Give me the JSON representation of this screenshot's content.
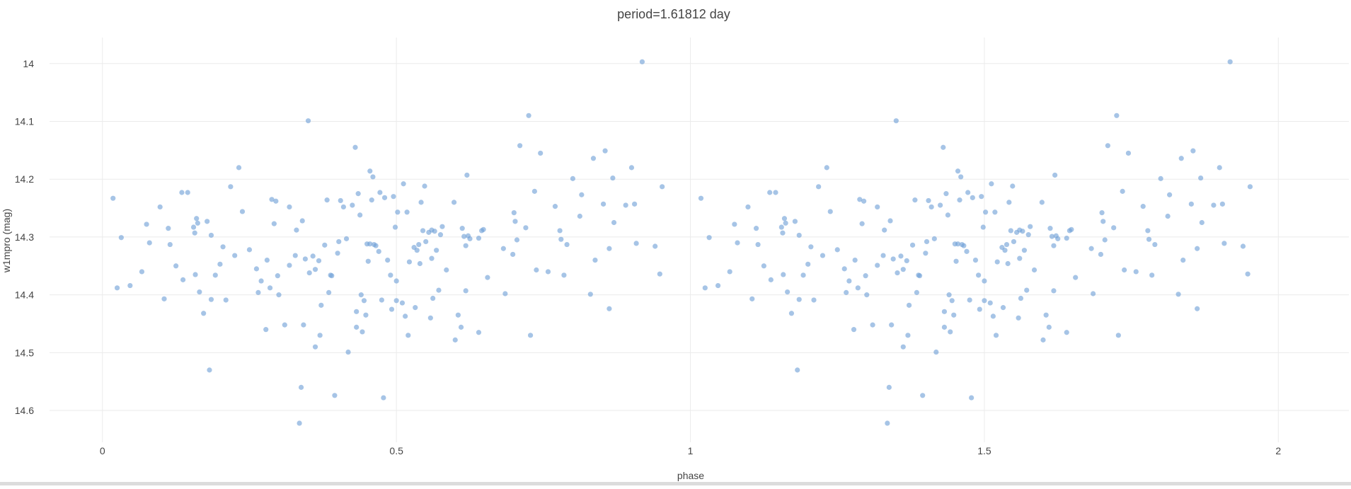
{
  "colors": {
    "marker": "#6f9fd6",
    "grid": "#ebebeb",
    "text": "#444444"
  },
  "chart_data": {
    "type": "scatter",
    "title": "period=1.61812 day",
    "xlabel": "phase",
    "ylabel": "w1mpro (mag)",
    "xlim": [
      -0.09,
      2.12
    ],
    "ylim": [
      14.655,
      13.955
    ],
    "y_reversed": true,
    "grid": true,
    "xticks": [
      0,
      0.5,
      1,
      1.5,
      2
    ],
    "xtick_labels": [
      "0",
      "0.5",
      "1",
      "1.5",
      "2"
    ],
    "yticks": [
      14.0,
      14.1,
      14.2,
      14.3,
      14.4,
      14.5,
      14.6
    ],
    "ytick_labels": [
      "14",
      "14.1",
      "14.2",
      "14.3",
      "14.4",
      "14.5",
      "14.6"
    ],
    "series": [
      {
        "phase": [
          0.018,
          0.025,
          0.032,
          0.047,
          0.067,
          0.075,
          0.08,
          0.098,
          0.105,
          0.112,
          0.115,
          0.125,
          0.135,
          0.137,
          0.145,
          0.155,
          0.157,
          0.158,
          0.16,
          0.162,
          0.165,
          0.172,
          0.178,
          0.182,
          0.185,
          0.185,
          0.192,
          0.2,
          0.205,
          0.21,
          0.218,
          0.225,
          0.232,
          0.238,
          0.25,
          0.262,
          0.265,
          0.27,
          0.278,
          0.28,
          0.285,
          0.288,
          0.292,
          0.295,
          0.298,
          0.3,
          0.31,
          0.318,
          0.318,
          0.328,
          0.33,
          0.335,
          0.338,
          0.34,
          0.342,
          0.345,
          0.35,
          0.352,
          0.358,
          0.362,
          0.362,
          0.368,
          0.37,
          0.372,
          0.378,
          0.382,
          0.385,
          0.388,
          0.39,
          0.395,
          0.4,
          0.402,
          0.405,
          0.41,
          0.415,
          0.418,
          0.425,
          0.43,
          0.432,
          0.432,
          0.435,
          0.438,
          0.44,
          0.442,
          0.445,
          0.448,
          0.45,
          0.452,
          0.455,
          0.455,
          0.458,
          0.46,
          0.462,
          0.465,
          0.47,
          0.472,
          0.475,
          0.478,
          0.48,
          0.485,
          0.49,
          0.492,
          0.495,
          0.498,
          0.5,
          0.5,
          0.502,
          0.51,
          0.512,
          0.515,
          0.518,
          0.52,
          0.522,
          0.53,
          0.532,
          0.535,
          0.538,
          0.54,
          0.542,
          0.545,
          0.548,
          0.55,
          0.555,
          0.558,
          0.56,
          0.56,
          0.562,
          0.565,
          0.568,
          0.572,
          0.575,
          0.578,
          0.585,
          0.598,
          0.6,
          0.605,
          0.61,
          0.612,
          0.615,
          0.618,
          0.618,
          0.62,
          0.622,
          0.625,
          0.64,
          0.64,
          0.645,
          0.648,
          0.655,
          0.682,
          0.685,
          0.698,
          0.7,
          0.702,
          0.705,
          0.71,
          0.72,
          0.725,
          0.728,
          0.735,
          0.738,
          0.745,
          0.758,
          0.77,
          0.778,
          0.78,
          0.785,
          0.79,
          0.8,
          0.812,
          0.815,
          0.83,
          0.835,
          0.838,
          0.852,
          0.855,
          0.862,
          0.862,
          0.868,
          0.87,
          0.89,
          0.9,
          0.905,
          0.908,
          0.918,
          0.94,
          0.948,
          0.952
        ],
        "mag": [
          14.233,
          14.388,
          14.301,
          14.384,
          14.36,
          14.278,
          14.31,
          14.248,
          14.407,
          14.285,
          14.313,
          14.35,
          14.223,
          14.374,
          14.223,
          14.283,
          14.293,
          14.365,
          14.268,
          14.276,
          14.395,
          14.432,
          14.273,
          14.53,
          14.297,
          14.408,
          14.366,
          14.347,
          14.317,
          14.409,
          14.213,
          14.332,
          14.18,
          14.256,
          14.322,
          14.355,
          14.396,
          14.376,
          14.46,
          14.34,
          14.388,
          14.235,
          14.277,
          14.238,
          14.367,
          14.4,
          14.452,
          14.248,
          14.349,
          14.332,
          14.288,
          14.622,
          14.56,
          14.272,
          14.452,
          14.338,
          14.099,
          14.362,
          14.333,
          14.356,
          14.49,
          14.341,
          14.47,
          14.418,
          14.314,
          14.236,
          14.396,
          14.366,
          14.367,
          14.574,
          14.328,
          14.308,
          14.237,
          14.248,
          14.303,
          14.499,
          14.245,
          14.145,
          14.456,
          14.429,
          14.225,
          14.262,
          14.4,
          14.464,
          14.41,
          14.435,
          14.312,
          14.342,
          14.186,
          14.312,
          14.236,
          14.196,
          14.313,
          14.315,
          14.325,
          14.223,
          14.409,
          14.578,
          14.232,
          14.34,
          14.366,
          14.425,
          14.23,
          14.283,
          14.41,
          14.376,
          14.257,
          14.414,
          14.208,
          14.437,
          14.257,
          14.47,
          14.343,
          14.318,
          14.422,
          14.323,
          14.313,
          14.346,
          14.24,
          14.289,
          14.212,
          14.308,
          14.292,
          14.44,
          14.288,
          14.337,
          14.406,
          14.29,
          14.323,
          14.392,
          14.296,
          14.282,
          14.357,
          14.24,
          14.478,
          14.435,
          14.456,
          14.285,
          14.299,
          14.393,
          14.315,
          14.193,
          14.298,
          14.303,
          14.465,
          14.302,
          14.289,
          14.287,
          14.37,
          14.32,
          14.398,
          14.33,
          14.258,
          14.273,
          14.305,
          14.142,
          14.284,
          14.09,
          14.47,
          14.221,
          14.357,
          14.155,
          14.36,
          14.247,
          14.289,
          14.304,
          14.366,
          14.313,
          14.199,
          14.264,
          14.227,
          14.399,
          14.164,
          14.34,
          14.243,
          14.151,
          14.32,
          14.424,
          14.198,
          14.275,
          14.245,
          14.18,
          14.243,
          14.311,
          13.997,
          14.316,
          14.364,
          14.213,
          14.148,
          14.187
        ]
      }
    ]
  }
}
